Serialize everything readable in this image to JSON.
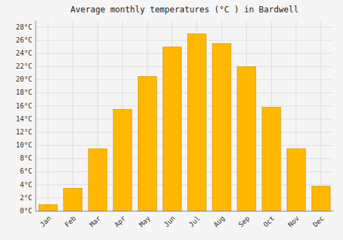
{
  "chart_data": {
    "type": "bar",
    "title": "Average monthly temperatures (°C ) in Bardwell",
    "categories": [
      "Jan",
      "Feb",
      "Mar",
      "Apr",
      "May",
      "Jun",
      "Jul",
      "Aug",
      "Sep",
      "Oct",
      "Nov",
      "Dec"
    ],
    "values": [
      1.0,
      3.5,
      9.5,
      15.5,
      20.5,
      25.0,
      27.0,
      25.5,
      22.0,
      15.8,
      9.5,
      3.8
    ],
    "color": "#FFB800",
    "ylim": [
      0,
      29
    ],
    "yticks": [
      {
        "value": 0,
        "label": "0°C"
      },
      {
        "value": 2,
        "label": "2°C"
      },
      {
        "value": 4,
        "label": "4°C"
      },
      {
        "value": 6,
        "label": "6°C"
      },
      {
        "value": 8,
        "label": "8°C"
      },
      {
        "value": 10,
        "label": "10°C"
      },
      {
        "value": 12,
        "label": "12°C"
      },
      {
        "value": 14,
        "label": "14°C"
      },
      {
        "value": 16,
        "label": "16°C"
      },
      {
        "value": 18,
        "label": "18°C"
      },
      {
        "value": 20,
        "label": "20°C"
      },
      {
        "value": 22,
        "label": "22°C"
      },
      {
        "value": 24,
        "label": "24°C"
      },
      {
        "value": 26,
        "label": "26°C"
      },
      {
        "value": 28,
        "label": "28°C"
      }
    ],
    "grid": true
  }
}
